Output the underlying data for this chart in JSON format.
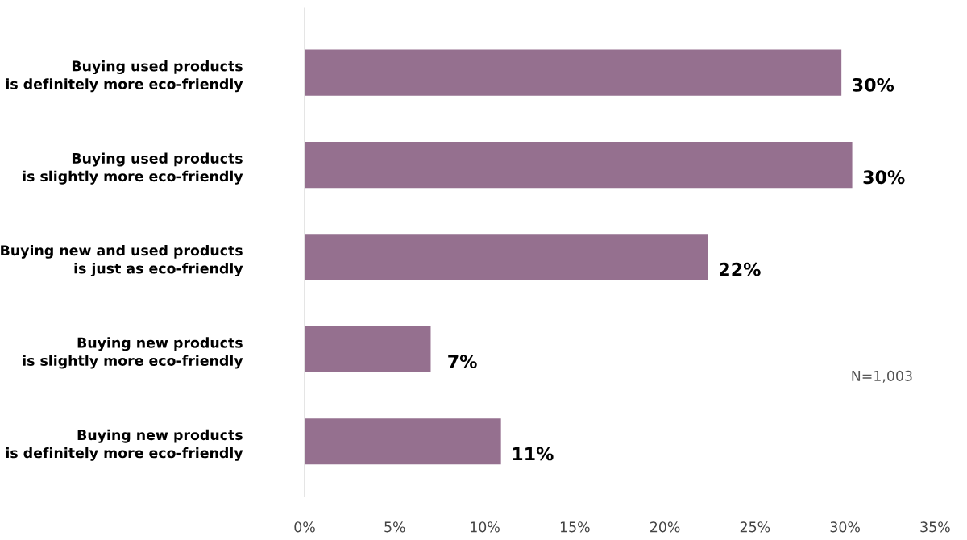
{
  "chart_data": {
    "type": "bar",
    "orientation": "horizontal",
    "categories": [
      "Buying used products\nis definitely more eco-friendly",
      "Buying used products\nis slightly more eco-friendly",
      "Buying new and used products\nis just as eco-friendly",
      "Buying new products\nis slightly more eco-friendly",
      "Buying new products\nis definitely more eco-friendly"
    ],
    "values": [
      29.8,
      30.4,
      22.4,
      7.0,
      10.9
    ],
    "value_labels": [
      "30%",
      "30%",
      "22%",
      "7%",
      "11%"
    ],
    "color": "#95708f",
    "xlim": [
      0,
      35
    ],
    "xticks": [
      {
        "value": 0,
        "label": "0%"
      },
      {
        "value": 5,
        "label": "5%"
      },
      {
        "value": 10,
        "label": "10%"
      },
      {
        "value": 15,
        "label": "15%"
      },
      {
        "value": 20,
        "label": "20%"
      },
      {
        "value": 25,
        "label": "25%"
      },
      {
        "value": 30,
        "label": "30%"
      },
      {
        "value": 35,
        "label": "35%"
      }
    ],
    "annotations": [
      "N=1,003"
    ],
    "grid": false,
    "legend": false
  }
}
